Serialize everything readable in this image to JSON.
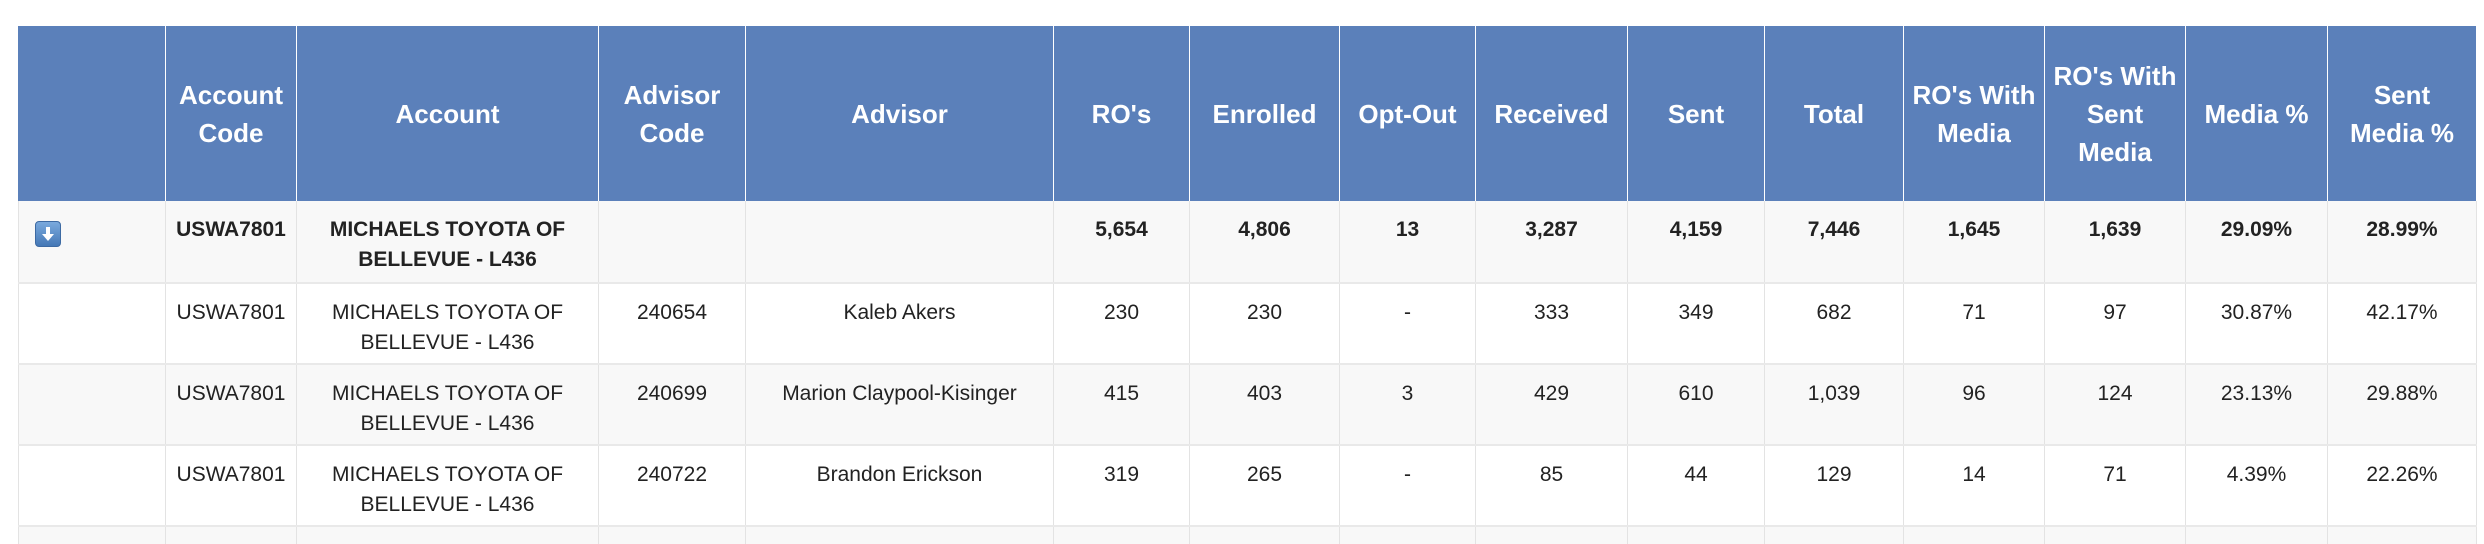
{
  "table": {
    "columns": [
      "",
      "Account Code",
      "Account",
      "Advisor Code",
      "Advisor",
      "RO's",
      "Enrolled",
      "Opt-Out",
      "Received",
      "Sent",
      "Total",
      "RO's With Media",
      "RO's With Sent Media",
      "Media %",
      "Sent Media %"
    ],
    "summary": {
      "expand_icon": "expand-down-arrow-icon",
      "cells": [
        "USWA7801",
        "MICHAELS TOYOTA OF BELLEVUE - L436",
        "",
        "",
        "5,654",
        "4,806",
        "13",
        "3,287",
        "4,159",
        "7,446",
        "1,645",
        "1,639",
        "29.09%",
        "28.99%"
      ]
    },
    "rows": [
      [
        "USWA7801",
        "MICHAELS TOYOTA OF BELLEVUE - L436",
        "240654",
        "Kaleb Akers",
        "230",
        "230",
        "-",
        "333",
        "349",
        "682",
        "71",
        "97",
        "30.87%",
        "42.17%"
      ],
      [
        "USWA7801",
        "MICHAELS TOYOTA OF BELLEVUE - L436",
        "240699",
        "Marion Claypool-Kisinger",
        "415",
        "403",
        "3",
        "429",
        "610",
        "1,039",
        "96",
        "124",
        "23.13%",
        "29.88%"
      ],
      [
        "USWA7801",
        "MICHAELS TOYOTA OF BELLEVUE - L436",
        "240722",
        "Brandon Erickson",
        "319",
        "265",
        "-",
        "85",
        "44",
        "129",
        "14",
        "71",
        "4.39%",
        "22.26%"
      ]
    ]
  },
  "colors": {
    "header_bg": "#5b80ba",
    "header_text": "#ffffff",
    "row_alt_bg": "#f8f8f8"
  }
}
